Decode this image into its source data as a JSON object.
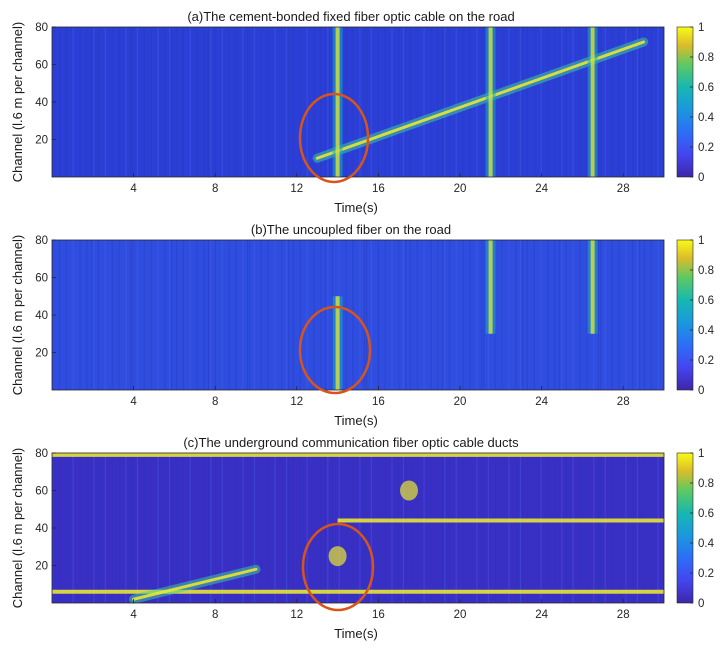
{
  "figure": {
    "colormap": "parula",
    "colors": {
      "parula_low": "#3e26a8",
      "parula_mid_blue": "#1a7bde",
      "parula_teal": "#20b7a4",
      "parula_high": "#f9fb15",
      "annotation_circle": "#d9541a"
    }
  },
  "chart_data": [
    {
      "type": "heatmap",
      "title": "(a)The cement-bonded fixed fiber optic cable on the road",
      "xlabel": "Time(s)",
      "ylabel": "Channel (l.6 m per channel)",
      "xlim": [
        0,
        30
      ],
      "ylim": [
        0,
        80
      ],
      "xticks": [
        4,
        8,
        12,
        16,
        20,
        24,
        28
      ],
      "yticks": [
        20,
        40,
        60,
        80
      ],
      "colorbar": {
        "range": [
          0,
          1
        ],
        "ticks": [
          0,
          0.2,
          0.4,
          0.6,
          0.8,
          1
        ]
      },
      "annotation": {
        "shape": "ellipse",
        "center_time_s": 14,
        "center_channel": 22
      },
      "features": [
        {
          "kind": "diagonal-track",
          "t_start": 13,
          "ch_start": 10,
          "t_end": 29,
          "ch_end": 72
        },
        {
          "kind": "vertical-band",
          "t": 14,
          "ch_low": 0,
          "ch_high": 80
        },
        {
          "kind": "vertical-band",
          "t": 21.5,
          "ch_low": 0,
          "ch_high": 80
        },
        {
          "kind": "vertical-band",
          "t": 26.5,
          "ch_low": 0,
          "ch_high": 80
        }
      ]
    },
    {
      "type": "heatmap",
      "title": "(b)The uncoupled fiber on the road",
      "xlabel": "Time(s)",
      "ylabel": "Channel (l.6 m per channel)",
      "xlim": [
        0,
        30
      ],
      "ylim": [
        0,
        80
      ],
      "xticks": [
        4,
        8,
        12,
        16,
        20,
        24,
        28
      ],
      "yticks": [
        20,
        40,
        60,
        80
      ],
      "colorbar": {
        "range": [
          0,
          1
        ],
        "ticks": [
          0,
          0.2,
          0.4,
          0.6,
          0.8,
          1
        ]
      },
      "annotation": {
        "shape": "ellipse",
        "center_time_s": 14,
        "center_channel": 22
      },
      "features": [
        {
          "kind": "vertical-band",
          "t": 14,
          "ch_low": 0,
          "ch_high": 50
        },
        {
          "kind": "vertical-band",
          "t": 21.5,
          "ch_low": 30,
          "ch_high": 80
        },
        {
          "kind": "vertical-band",
          "t": 26.5,
          "ch_low": 30,
          "ch_high": 80
        }
      ]
    },
    {
      "type": "heatmap",
      "title": "(c)The underground communication fiber optic cable ducts",
      "xlabel": "Time(s)",
      "ylabel": "Channel (l.6 m per channel)",
      "xlim": [
        0,
        30
      ],
      "ylim": [
        0,
        80
      ],
      "xticks": [
        4,
        8,
        12,
        16,
        20,
        24,
        28
      ],
      "yticks": [
        20,
        40,
        60,
        80
      ],
      "colorbar": {
        "range": [
          0,
          1
        ],
        "ticks": [
          0,
          0.2,
          0.4,
          0.6,
          0.8,
          1
        ]
      },
      "annotation": {
        "shape": "ellipse",
        "center_time_s": 14,
        "center_channel": 22
      },
      "features": [
        {
          "kind": "horizontal-band",
          "ch": 79,
          "t_start": 0,
          "t_end": 30
        },
        {
          "kind": "horizontal-band",
          "ch": 44,
          "t_start": 14,
          "t_end": 30
        },
        {
          "kind": "horizontal-band",
          "ch": 6,
          "t_start": 0,
          "t_end": 30
        },
        {
          "kind": "diagonal-track",
          "t_start": 4,
          "ch_start": 2,
          "t_end": 10,
          "ch_end": 18
        },
        {
          "kind": "patch",
          "t": 14,
          "ch": 25
        },
        {
          "kind": "patch",
          "t": 17.5,
          "ch": 60
        }
      ]
    }
  ]
}
